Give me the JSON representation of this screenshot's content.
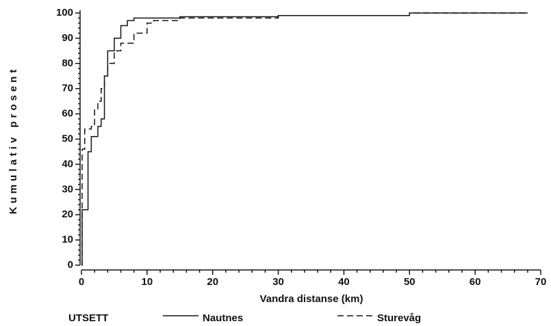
{
  "chart_data": {
    "type": "line",
    "drawstyle": "steps-post",
    "xlabel": "Vandra distanse (km)",
    "ylabel": "Kumulativ prosent",
    "legend_title": "UTSETT",
    "xlim": [
      0,
      70
    ],
    "xticks": [
      0,
      10,
      20,
      30,
      40,
      50,
      60,
      70
    ],
    "ylim": [
      0,
      100
    ],
    "yticks": [
      0,
      10,
      20,
      30,
      40,
      50,
      60,
      70,
      80,
      90,
      100
    ],
    "series": [
      {
        "name": "Nautnes",
        "color": "#111111",
        "dash": "solid",
        "x": [
          0,
          0.1,
          1.0,
          1.5,
          2.5,
          3.0,
          3.5,
          4.0,
          5.0,
          6.0,
          7.0,
          8.0,
          15,
          30,
          50,
          68
        ],
        "values": [
          0,
          22,
          45,
          51,
          55,
          58,
          75,
          85,
          90,
          95,
          97,
          98,
          98.5,
          99,
          100,
          100
        ]
      },
      {
        "name": "Sturevåg",
        "color": "#111111",
        "dash": "dashed",
        "x": [
          0,
          0.1,
          0.5,
          1.5,
          2.0,
          2.5,
          3.0,
          3.5,
          4.0,
          5.0,
          6.0,
          8.0,
          10,
          11,
          15,
          30,
          50,
          68
        ],
        "values": [
          0,
          46,
          54,
          55,
          62,
          65,
          70,
          75,
          80,
          85,
          88,
          92,
          96,
          97,
          98,
          99,
          100,
          100
        ]
      }
    ]
  }
}
